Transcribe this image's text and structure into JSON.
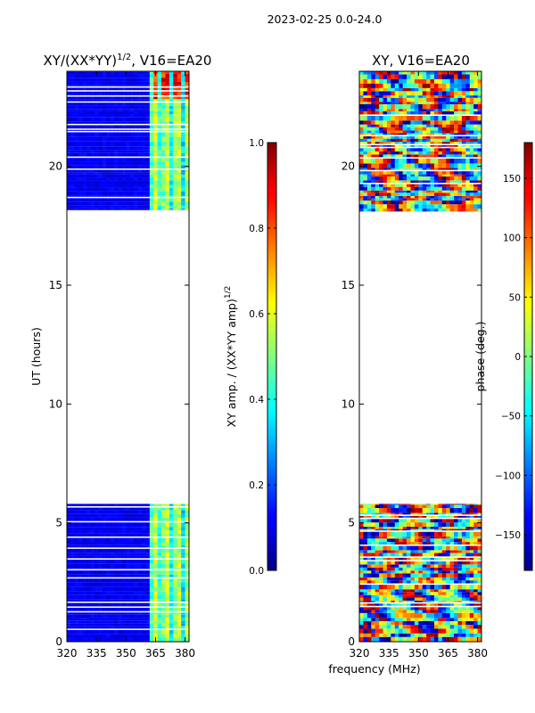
{
  "chart_data": {
    "suptitle": "2023-02-25 0.0-24.0",
    "xlabel": "frequency (MHz)",
    "panels": [
      {
        "type": "heatmap",
        "title_prefix": "XY/(XX*YY)",
        "title_exponent": "1/2",
        "title_suffix": ", V16=EA20",
        "ylabel": "UT (hours)",
        "xlim": [
          320,
          382
        ],
        "ylim": [
          0,
          24
        ],
        "xticks": [
          320,
          335,
          350,
          365,
          380
        ],
        "yticks": [
          0,
          5,
          10,
          15,
          20
        ],
        "data_gap_hours": [
          5.8,
          18.1
        ],
        "colorbar": {
          "label_prefix": "XY amp. / (XX*YY amp)",
          "label_exponent": "1/2",
          "range": [
            0.0,
            1.0
          ],
          "ticks": [
            "0.0",
            "0.2",
            "0.4",
            "0.6",
            "0.8",
            "1.0"
          ],
          "colormap": "jet"
        }
      },
      {
        "type": "heatmap",
        "title": "XY, V16=EA20",
        "xlim": [
          320,
          382
        ],
        "ylim": [
          0,
          24
        ],
        "xticks": [
          320,
          335,
          350,
          365,
          380
        ],
        "yticks": [
          0,
          5,
          10,
          15,
          20
        ],
        "data_gap_hours": [
          5.8,
          18.1
        ],
        "colorbar": {
          "label": "phase (deg.)",
          "range": [
            -180,
            180
          ],
          "ticks": [
            "−150",
            "−100",
            "−50",
            "0",
            "50",
            "100",
            "150"
          ],
          "tick_values": [
            -150,
            -100,
            -50,
            0,
            50,
            100,
            150
          ],
          "colormap": "jet"
        }
      }
    ]
  }
}
